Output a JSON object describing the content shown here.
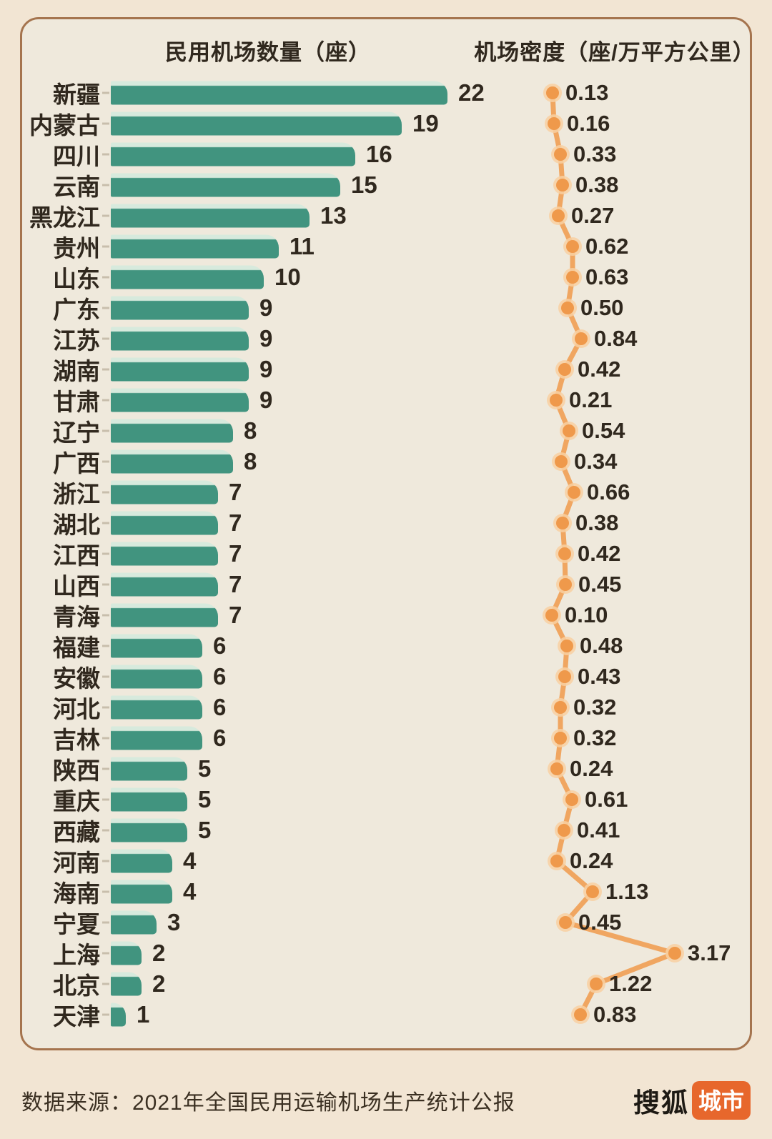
{
  "header": {
    "left_title": "民用机场数量（座）",
    "right_title": "机场密度（座/万平方公里）"
  },
  "chart_data": {
    "type": "bar",
    "subtype": "horizontal-bar-with-line-dot-column",
    "categories": [
      "新疆",
      "内蒙古",
      "四川",
      "云南",
      "黑龙江",
      "贵州",
      "山东",
      "广东",
      "江苏",
      "湖南",
      "甘肃",
      "辽宁",
      "广西",
      "浙江",
      "湖北",
      "江西",
      "山西",
      "青海",
      "福建",
      "安徽",
      "河北",
      "吉林",
      "陕西",
      "重庆",
      "西藏",
      "河南",
      "海南",
      "宁夏",
      "上海",
      "北京",
      "天津"
    ],
    "series": [
      {
        "name": "民用机场数量（座）",
        "type": "bar",
        "values": [
          22,
          19,
          16,
          15,
          13,
          11,
          10,
          9,
          9,
          9,
          9,
          8,
          8,
          7,
          7,
          7,
          7,
          7,
          6,
          6,
          6,
          6,
          5,
          5,
          5,
          4,
          4,
          3,
          2,
          2,
          1
        ]
      },
      {
        "name": "机场密度（座/万平方公里）",
        "type": "line",
        "values_text": [
          "0.13",
          "0.16",
          "0.33",
          "0.38",
          "0.27",
          "0.62",
          "0.63",
          "0.50",
          "0.84",
          "0.42",
          "0.21",
          "0.54",
          "0.34",
          "0.66",
          "0.38",
          "0.42",
          "0.45",
          "0.10",
          "0.48",
          "0.43",
          "0.32",
          "0.32",
          "0.24",
          "0.61",
          "0.41",
          "0.24",
          "1.13",
          "0.45",
          "3.17",
          "1.22",
          "0.83"
        ]
      }
    ],
    "title": "",
    "xlabel": "",
    "ylabel": "",
    "legend": "none",
    "grid": false,
    "colors": {
      "bar": "#41947F",
      "bar_highlight": "#D7EADD",
      "line": "#F0A661",
      "dot": "#EF994B",
      "dot_halo": "#F8D0A2",
      "text": "#30281E"
    }
  },
  "footer": {
    "source": "数据来源：2021年全国民用运输机场生产统计公报",
    "logo": {
      "name": "搜狐城市",
      "text_plain": "搜狐",
      "text_badge": "城市",
      "badge_color": "#E7672C"
    }
  }
}
